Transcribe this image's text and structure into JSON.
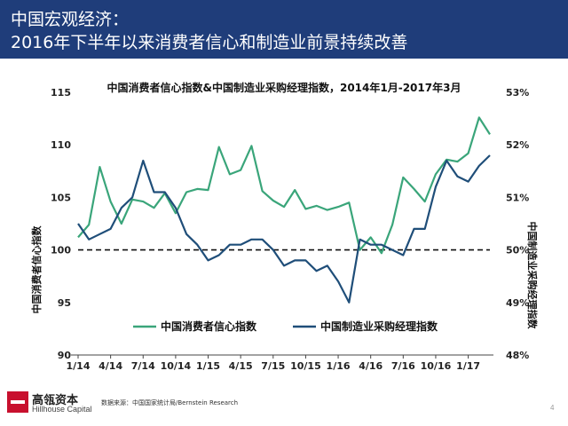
{
  "header": {
    "line1": "中国宏观经济：",
    "line2": "2016年下半年以来消费者信心和制造业前景持续改善"
  },
  "footer": {
    "brand_cn": "高瓴资本",
    "brand_en": "Hillhouse Capital",
    "source": "数据来源：中国国家统计局/Bernstein Research",
    "page_number": "4"
  },
  "colors": {
    "header_bg": "#1f3d7a",
    "consumer_line": "#3aa57a",
    "pmi_line": "#1f4e79",
    "logo": "#c8102e"
  },
  "chart_data": {
    "type": "line",
    "title": "中国消费者信心指数&中国制造业采购经理指数，2014年1月-2017年3月",
    "ylabel_left": "中国消费者信心指数",
    "ylabel_right": "中国制造业采购经理指数",
    "x_tick_labels": [
      "1/14",
      "4/14",
      "7/14",
      "10/14",
      "1/15",
      "4/15",
      "7/15",
      "10/15",
      "1/16",
      "4/16",
      "7/16",
      "10/16",
      "1/17"
    ],
    "ylim_left": [
      90,
      115
    ],
    "yticks_left": [
      "90",
      "95",
      "100",
      "105",
      "110",
      "115"
    ],
    "ylim_right": [
      48,
      53
    ],
    "yticks_right": [
      "48%",
      "49%",
      "50%",
      "51%",
      "52%",
      "53%"
    ],
    "reference_line": {
      "axis": "right",
      "value": 50,
      "style": "dashed"
    },
    "legend_position": "bottom-center",
    "x": [
      "2014-01",
      "2014-02",
      "2014-03",
      "2014-04",
      "2014-05",
      "2014-06",
      "2014-07",
      "2014-08",
      "2014-09",
      "2014-10",
      "2014-11",
      "2014-12",
      "2015-01",
      "2015-02",
      "2015-03",
      "2015-04",
      "2015-05",
      "2015-06",
      "2015-07",
      "2015-08",
      "2015-09",
      "2015-10",
      "2015-11",
      "2015-12",
      "2016-01",
      "2016-02",
      "2016-03",
      "2016-04",
      "2016-05",
      "2016-06",
      "2016-07",
      "2016-08",
      "2016-09",
      "2016-10",
      "2016-11",
      "2016-12",
      "2017-01",
      "2017-02",
      "2017-03"
    ],
    "series": [
      {
        "name": "中国消费者信心指数",
        "axis": "left",
        "values": [
          101.2,
          102.4,
          107.9,
          104.6,
          102.5,
          104.8,
          104.6,
          104.0,
          105.4,
          103.5,
          105.5,
          105.8,
          105.7,
          109.8,
          107.2,
          107.6,
          109.9,
          105.6,
          104.7,
          104.1,
          105.7,
          103.9,
          104.2,
          103.8,
          104.1,
          104.5,
          100.0,
          101.2,
          99.7,
          102.4,
          106.9,
          105.8,
          104.6,
          107.2,
          108.6,
          108.4,
          109.2,
          112.6,
          111.0
        ]
      },
      {
        "name": "中国制造业采购经理指数",
        "axis": "right",
        "values": [
          50.5,
          50.2,
          50.3,
          50.4,
          50.8,
          51.0,
          51.7,
          51.1,
          51.1,
          50.8,
          50.3,
          50.1,
          49.8,
          49.9,
          50.1,
          50.1,
          50.2,
          50.2,
          50.0,
          49.7,
          49.8,
          49.8,
          49.6,
          49.7,
          49.4,
          49.0,
          50.2,
          50.1,
          50.1,
          50.0,
          49.9,
          50.4,
          50.4,
          51.2,
          51.7,
          51.4,
          51.3,
          51.6,
          51.8
        ]
      }
    ]
  }
}
